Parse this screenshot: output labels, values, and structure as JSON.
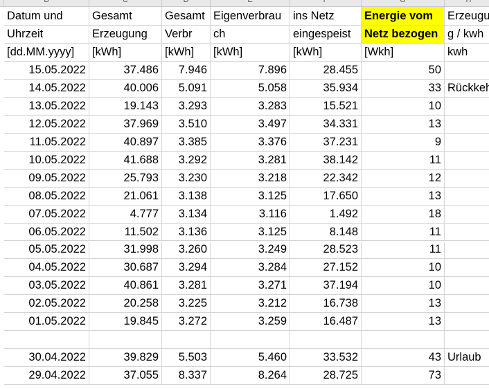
{
  "column_letters": [
    "B",
    "C",
    "D",
    "E",
    "F",
    "G",
    "H"
  ],
  "headers": [
    [
      "Datum und",
      "Gesamt",
      "Gesamt",
      "Eigenverbrau",
      "ins Netz",
      "Energie vom",
      "Erzeugu"
    ],
    [
      "Uhrzeit",
      "Erzeugung",
      "Verbr",
      "ch",
      "eingespeist",
      "Netz bezogen",
      "g / kwh"
    ],
    [
      "[dd.MM.yyyy]",
      "[kWh]",
      "[kWh]",
      "[kWh]",
      "[kWh]",
      "[Wkh]",
      "kwh"
    ]
  ],
  "highlight_color": "#ffff00",
  "rows": [
    [
      "15.05.2022",
      "37.486",
      "7.946",
      "7.896",
      "28.455",
      "50",
      ""
    ],
    [
      "14.05.2022",
      "40.006",
      "5.091",
      "5.058",
      "35.934",
      "33",
      "Rückkeh"
    ],
    [
      "13.05.2022",
      "19.143",
      "3.293",
      "3.283",
      "15.521",
      "10",
      ""
    ],
    [
      "12.05.2022",
      "37.969",
      "3.510",
      "3.497",
      "34.331",
      "13",
      ""
    ],
    [
      "11.05.2022",
      "40.897",
      "3.385",
      "3.376",
      "37.231",
      "9",
      ""
    ],
    [
      "10.05.2022",
      "41.688",
      "3.292",
      "3.281",
      "38.142",
      "11",
      ""
    ],
    [
      "09.05.2022",
      "25.793",
      "3.230",
      "3.218",
      "22.342",
      "12",
      ""
    ],
    [
      "08.05.2022",
      "21.061",
      "3.138",
      "3.125",
      "17.650",
      "13",
      ""
    ],
    [
      "07.05.2022",
      "4.777",
      "3.134",
      "3.116",
      "1.492",
      "18",
      ""
    ],
    [
      "06.05.2022",
      "11.502",
      "3.136",
      "3.125",
      "8.148",
      "11",
      ""
    ],
    [
      "05.05.2022",
      "31.998",
      "3.260",
      "3.249",
      "28.523",
      "11",
      ""
    ],
    [
      "04.05.2022",
      "30.687",
      "3.294",
      "3.284",
      "27.152",
      "10",
      ""
    ],
    [
      "03.05.2022",
      "40.861",
      "3.281",
      "3.271",
      "37.194",
      "10",
      ""
    ],
    [
      "02.05.2022",
      "20.258",
      "3.225",
      "3.212",
      "16.738",
      "13",
      ""
    ],
    [
      "01.05.2022",
      "19.845",
      "3.272",
      "3.259",
      "16.487",
      "13",
      ""
    ],
    [
      "",
      "",
      "",
      "",
      "",
      "",
      ""
    ],
    [
      "30.04.2022",
      "39.829",
      "5.503",
      "5.460",
      "33.532",
      "43",
      "Urlaub"
    ],
    [
      "29.04.2022",
      "37.055",
      "8.337",
      "8.264",
      "28.725",
      "73",
      ""
    ]
  ]
}
